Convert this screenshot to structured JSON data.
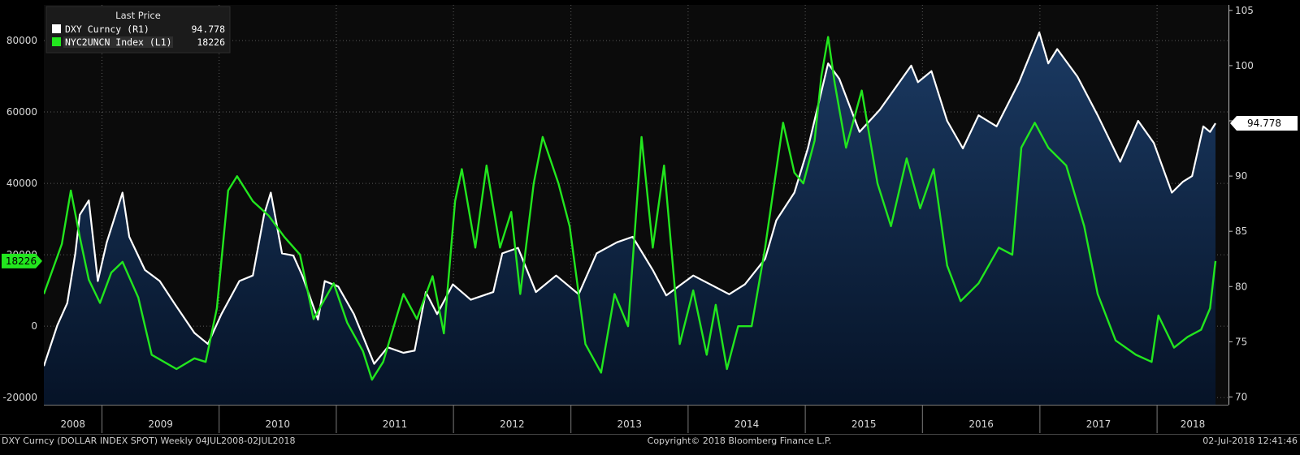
{
  "colors": {
    "background": "#000000",
    "plot_bg": "#0b0b0b",
    "area_top": "#1b3a63",
    "area_bottom": "#061327",
    "dxy_line": "#ffffff",
    "nyc_line": "#22e61e",
    "grid": "#5a5a5a",
    "legend_bg": "#1b1b1b"
  },
  "legend": {
    "header": "Last Price",
    "items": [
      {
        "label": "DXY Curncy  (R1)",
        "value": "94.778",
        "color": "#ffffff"
      },
      {
        "label": "NYC2UNCN Index  (L1)",
        "value": "18226",
        "color": "#22e61e"
      }
    ]
  },
  "badges": {
    "right": "94.778",
    "left": "18226"
  },
  "footer": {
    "left": "DXY Curncy (DOLLAR INDEX SPOT) Weekly 04JUL2008-02JUL2018",
    "center": "Copyright© 2018 Bloomberg Finance L.P.",
    "right": "02-Jul-2018 12:41:46"
  },
  "chart_data": {
    "type": "line",
    "grid": true,
    "x_start": "2008-07-04",
    "x_end": "2018-07-02",
    "year_labels": [
      "2008",
      "2009",
      "2010",
      "2011",
      "2012",
      "2013",
      "2014",
      "2015",
      "2016",
      "2017",
      "2018"
    ],
    "left_axis": {
      "min": -22000,
      "max": 90000,
      "ticks": [
        -20000,
        0,
        20000,
        40000,
        60000,
        80000
      ],
      "tick_labels": [
        "-20000",
        "0",
        "20000",
        "40000",
        "60000",
        "80000"
      ]
    },
    "right_axis": {
      "min": 69.3,
      "max": 105.5,
      "ticks": [
        70,
        75,
        80,
        85,
        90,
        95,
        100,
        105
      ],
      "tick_labels": [
        "70",
        "75",
        "80",
        "85",
        "90",
        "95",
        "100",
        "105"
      ]
    },
    "series": [
      {
        "name": "DXY Curncy",
        "axis": "right",
        "style": "area",
        "points": [
          [
            "2008-07-04",
            72.8
          ],
          [
            "2008-08-15",
            76.5
          ],
          [
            "2008-09-15",
            78.5
          ],
          [
            "2008-10-10",
            83.0
          ],
          [
            "2008-10-24",
            86.5
          ],
          [
            "2008-11-21",
            87.8
          ],
          [
            "2008-12-19",
            80.5
          ],
          [
            "2009-01-16",
            84.0
          ],
          [
            "2009-03-06",
            88.5
          ],
          [
            "2009-03-27",
            84.5
          ],
          [
            "2009-05-15",
            81.5
          ],
          [
            "2009-06-30",
            80.5
          ],
          [
            "2009-08-14",
            78.5
          ],
          [
            "2009-10-16",
            75.8
          ],
          [
            "2009-11-27",
            74.8
          ],
          [
            "2010-01-08",
            77.5
          ],
          [
            "2010-03-05",
            80.5
          ],
          [
            "2010-04-16",
            81.0
          ],
          [
            "2010-05-21",
            86.5
          ],
          [
            "2010-06-11",
            88.5
          ],
          [
            "2010-07-16",
            83.0
          ],
          [
            "2010-08-20",
            82.8
          ],
          [
            "2010-09-17",
            81.0
          ],
          [
            "2010-11-05",
            77.0
          ],
          [
            "2010-11-26",
            80.5
          ],
          [
            "2011-01-07",
            80.0
          ],
          [
            "2011-02-25",
            77.5
          ],
          [
            "2011-04-29",
            73.0
          ],
          [
            "2011-06-10",
            74.5
          ],
          [
            "2011-07-29",
            74.0
          ],
          [
            "2011-09-02",
            74.2
          ],
          [
            "2011-10-07",
            79.5
          ],
          [
            "2011-11-11",
            77.5
          ],
          [
            "2011-12-30",
            80.2
          ],
          [
            "2012-02-24",
            78.8
          ],
          [
            "2012-05-04",
            79.5
          ],
          [
            "2012-06-01",
            83.0
          ],
          [
            "2012-07-20",
            83.5
          ],
          [
            "2012-09-14",
            79.5
          ],
          [
            "2012-11-16",
            81.0
          ],
          [
            "2013-01-25",
            79.3
          ],
          [
            "2013-03-22",
            83.0
          ],
          [
            "2013-05-24",
            84.0
          ],
          [
            "2013-07-12",
            84.5
          ],
          [
            "2013-09-13",
            81.5
          ],
          [
            "2013-10-25",
            79.2
          ],
          [
            "2014-01-17",
            81.0
          ],
          [
            "2014-05-09",
            79.3
          ],
          [
            "2014-06-27",
            80.2
          ],
          [
            "2014-08-29",
            82.5
          ],
          [
            "2014-10-03",
            86.0
          ],
          [
            "2014-11-28",
            88.5
          ],
          [
            "2015-01-09",
            92.5
          ],
          [
            "2015-03-13",
            100.2
          ],
          [
            "2015-04-17",
            98.8
          ],
          [
            "2015-06-19",
            94.0
          ],
          [
            "2015-08-21",
            96.0
          ],
          [
            "2015-11-27",
            100.0
          ],
          [
            "2015-12-18",
            98.5
          ],
          [
            "2016-01-29",
            99.5
          ],
          [
            "2016-03-18",
            95.0
          ],
          [
            "2016-05-06",
            92.5
          ],
          [
            "2016-06-24",
            95.5
          ],
          [
            "2016-08-19",
            94.5
          ],
          [
            "2016-10-28",
            98.5
          ],
          [
            "2016-12-30",
            103.0
          ],
          [
            "2017-01-27",
            100.2
          ],
          [
            "2017-02-24",
            101.5
          ],
          [
            "2017-04-28",
            99.0
          ],
          [
            "2017-06-30",
            95.5
          ],
          [
            "2017-09-08",
            91.3
          ],
          [
            "2017-11-03",
            95.0
          ],
          [
            "2017-12-22",
            93.0
          ],
          [
            "2018-02-16",
            88.5
          ],
          [
            "2018-03-23",
            89.5
          ],
          [
            "2018-04-20",
            90.0
          ],
          [
            "2018-05-25",
            94.5
          ],
          [
            "2018-06-15",
            94.0
          ],
          [
            "2018-07-02",
            94.778
          ]
        ]
      },
      {
        "name": "NYC2UNCN Index",
        "axis": "left",
        "style": "line",
        "points": [
          [
            "2008-07-04",
            9000
          ],
          [
            "2008-08-29",
            23000
          ],
          [
            "2008-09-26",
            38000
          ],
          [
            "2008-10-24",
            25000
          ],
          [
            "2008-11-21",
            13000
          ],
          [
            "2008-12-26",
            6500
          ],
          [
            "2009-01-30",
            15000
          ],
          [
            "2009-03-06",
            18000
          ],
          [
            "2009-04-24",
            8000
          ],
          [
            "2009-06-05",
            -8000
          ],
          [
            "2009-08-21",
            -12000
          ],
          [
            "2009-10-16",
            -9000
          ],
          [
            "2009-11-20",
            -10000
          ],
          [
            "2009-12-25",
            5000
          ],
          [
            "2010-01-29",
            38000
          ],
          [
            "2010-02-26",
            42000
          ],
          [
            "2010-04-16",
            35000
          ],
          [
            "2010-06-04",
            31000
          ],
          [
            "2010-07-23",
            25000
          ],
          [
            "2010-09-10",
            20000
          ],
          [
            "2010-10-22",
            2000
          ],
          [
            "2010-12-24",
            12000
          ],
          [
            "2011-02-04",
            1000
          ],
          [
            "2011-03-25",
            -7000
          ],
          [
            "2011-04-22",
            -15000
          ],
          [
            "2011-05-27",
            -10000
          ],
          [
            "2011-07-29",
            9000
          ],
          [
            "2011-09-09",
            2000
          ],
          [
            "2011-10-28",
            14000
          ],
          [
            "2011-12-02",
            -2000
          ],
          [
            "2012-01-06",
            35000
          ],
          [
            "2012-01-27",
            44000
          ],
          [
            "2012-03-09",
            22000
          ],
          [
            "2012-04-13",
            45000
          ],
          [
            "2012-05-25",
            22000
          ],
          [
            "2012-06-29",
            32000
          ],
          [
            "2012-07-27",
            9000
          ],
          [
            "2012-09-07",
            40000
          ],
          [
            "2012-10-05",
            53000
          ],
          [
            "2012-11-23",
            40000
          ],
          [
            "2012-12-28",
            28000
          ],
          [
            "2013-02-15",
            -5000
          ],
          [
            "2013-04-05",
            -13000
          ],
          [
            "2013-05-17",
            9000
          ],
          [
            "2013-06-28",
            0
          ],
          [
            "2013-08-09",
            53000
          ],
          [
            "2013-09-13",
            22000
          ],
          [
            "2013-10-18",
            45000
          ],
          [
            "2013-12-06",
            -5000
          ],
          [
            "2014-01-17",
            10000
          ],
          [
            "2014-02-28",
            -8000
          ],
          [
            "2014-03-28",
            6000
          ],
          [
            "2014-05-02",
            -12000
          ],
          [
            "2014-06-06",
            0
          ],
          [
            "2014-07-18",
            0
          ],
          [
            "2014-08-29",
            22000
          ],
          [
            "2014-10-24",
            57000
          ],
          [
            "2014-11-28",
            43000
          ],
          [
            "2014-12-26",
            40000
          ],
          [
            "2015-01-30",
            52000
          ],
          [
            "2015-02-20",
            70000
          ],
          [
            "2015-03-13",
            81000
          ],
          [
            "2015-04-03",
            68000
          ],
          [
            "2015-05-08",
            50000
          ],
          [
            "2015-06-26",
            66000
          ],
          [
            "2015-08-14",
            40000
          ],
          [
            "2015-09-25",
            28000
          ],
          [
            "2015-11-13",
            47000
          ],
          [
            "2015-12-25",
            33000
          ],
          [
            "2016-02-05",
            44000
          ],
          [
            "2016-03-18",
            17000
          ],
          [
            "2016-04-29",
            7000
          ],
          [
            "2016-06-24",
            12000
          ],
          [
            "2016-08-26",
            22000
          ],
          [
            "2016-10-07",
            20000
          ],
          [
            "2016-11-04",
            50000
          ],
          [
            "2016-12-16",
            57000
          ],
          [
            "2017-01-27",
            50000
          ],
          [
            "2017-03-24",
            45000
          ],
          [
            "2017-05-19",
            28000
          ],
          [
            "2017-06-30",
            9000
          ],
          [
            "2017-08-25",
            -4000
          ],
          [
            "2017-10-27",
            -8000
          ],
          [
            "2017-12-15",
            -10000
          ],
          [
            "2018-01-05",
            3000
          ],
          [
            "2018-02-23",
            -6000
          ],
          [
            "2018-04-06",
            -3000
          ],
          [
            "2018-05-18",
            -1000
          ],
          [
            "2018-06-15",
            5000
          ],
          [
            "2018-06-29",
            16000
          ],
          [
            "2018-07-02",
            18226
          ]
        ]
      }
    ]
  }
}
